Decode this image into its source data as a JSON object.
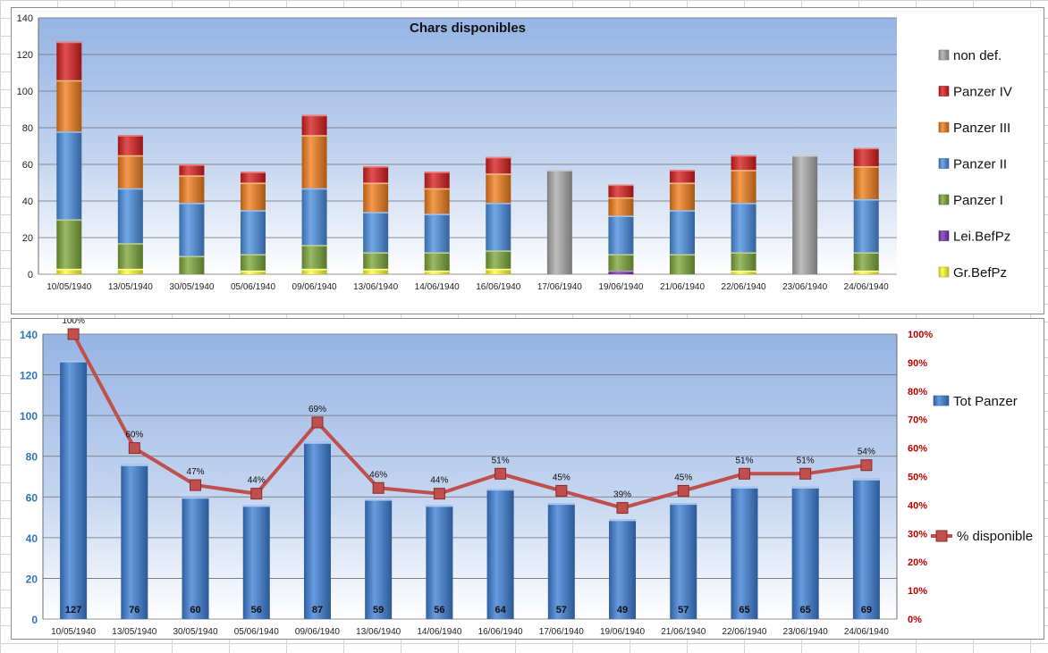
{
  "chart_data": [
    {
      "type": "bar",
      "stacked": true,
      "title": "Chars disponibles",
      "categories": [
        "10/05/1940",
        "13/05/1940",
        "30/05/1940",
        "05/06/1940",
        "09/06/1940",
        "13/06/1940",
        "14/06/1940",
        "16/06/1940",
        "17/06/1940",
        "19/06/1940",
        "21/06/1940",
        "22/06/1940",
        "23/06/1940",
        "24/06/1940"
      ],
      "ylim": [
        0,
        140
      ],
      "yticks": [
        0,
        20,
        40,
        60,
        80,
        100,
        120,
        140
      ],
      "grid": true,
      "legend_position": "right",
      "series": [
        {
          "name": "Gr.BefPz",
          "color": "#ffff33",
          "values": [
            3,
            3,
            0,
            2,
            3,
            3,
            2,
            3,
            0,
            0,
            0,
            2,
            0,
            2
          ]
        },
        {
          "name": "Lei.BefPz",
          "color": "#7a2fb0",
          "values": [
            0,
            0,
            0,
            0,
            0,
            0,
            0,
            0,
            0,
            2,
            0,
            0,
            0,
            0
          ]
        },
        {
          "name": "Panzer I",
          "color": "#7ea73a",
          "values": [
            27,
            14,
            10,
            9,
            13,
            9,
            10,
            10,
            0,
            9,
            11,
            10,
            0,
            10
          ]
        },
        {
          "name": "Panzer II",
          "color": "#4a8ee0",
          "values": [
            48,
            30,
            29,
            24,
            31,
            22,
            21,
            26,
            0,
            21,
            24,
            27,
            0,
            29
          ]
        },
        {
          "name": "Panzer III",
          "color": "#f07d1c",
          "values": [
            28,
            18,
            15,
            15,
            29,
            16,
            14,
            16,
            0,
            10,
            15,
            18,
            0,
            18
          ]
        },
        {
          "name": "Panzer IV",
          "color": "#d81e1e",
          "values": [
            21,
            11,
            6,
            6,
            11,
            9,
            9,
            9,
            0,
            7,
            7,
            8,
            0,
            10
          ]
        },
        {
          "name": "non def.",
          "color": "#aaaaaa",
          "values": [
            0,
            0,
            0,
            0,
            0,
            0,
            0,
            0,
            57,
            0,
            0,
            0,
            65,
            0
          ]
        }
      ]
    },
    {
      "type": "bar+line",
      "categories": [
        "10/05/1940",
        "13/05/1940",
        "30/05/1940",
        "05/06/1940",
        "09/06/1940",
        "13/06/1940",
        "14/06/1940",
        "16/06/1940",
        "17/06/1940",
        "19/06/1940",
        "21/06/1940",
        "22/06/1940",
        "23/06/1940",
        "24/06/1940"
      ],
      "ylim": [
        0,
        140
      ],
      "yticks": [
        0,
        20,
        40,
        60,
        80,
        100,
        120,
        140
      ],
      "y2lim": [
        0,
        100
      ],
      "y2ticks": [
        "0%",
        "10%",
        "20%",
        "30%",
        "40%",
        "50%",
        "60%",
        "70%",
        "80%",
        "90%",
        "100%"
      ],
      "grid": true,
      "legend_position": "right",
      "series": [
        {
          "name": "Tot Panzer",
          "kind": "bar",
          "axis": "left",
          "color": "#3d7fd6",
          "values": [
            127,
            76,
            60,
            56,
            87,
            59,
            56,
            64,
            57,
            49,
            57,
            65,
            65,
            69
          ]
        },
        {
          "name": "% disponible",
          "kind": "line",
          "axis": "right",
          "color": "#c0504d",
          "values": [
            100,
            60,
            47,
            44,
            69,
            46,
            44,
            51,
            45,
            39,
            45,
            51,
            51,
            54
          ]
        }
      ]
    }
  ]
}
